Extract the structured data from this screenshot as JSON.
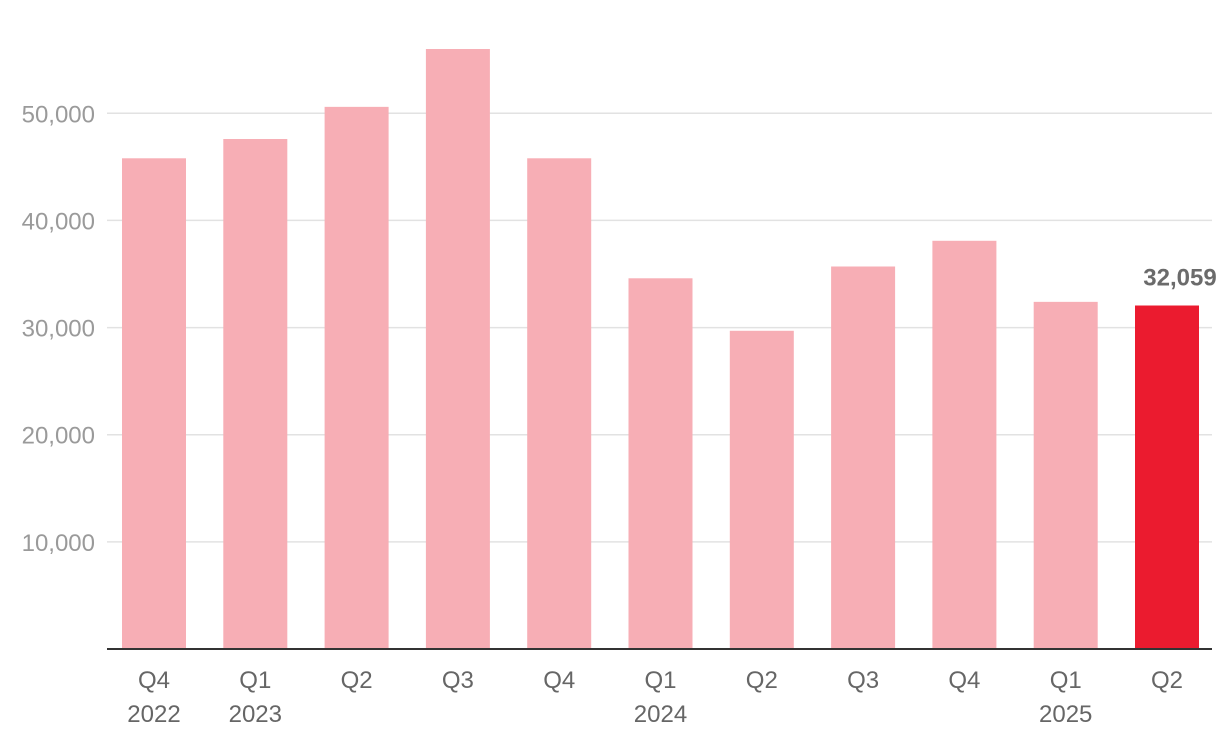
{
  "chart_data": {
    "type": "bar",
    "title": "",
    "xlabel": "",
    "ylabel": "",
    "categories": [
      {
        "quarter": "Q4",
        "year": "2022"
      },
      {
        "quarter": "Q1",
        "year": "2023"
      },
      {
        "quarter": "Q2",
        "year": ""
      },
      {
        "quarter": "Q3",
        "year": ""
      },
      {
        "quarter": "Q4",
        "year": ""
      },
      {
        "quarter": "Q1",
        "year": "2024"
      },
      {
        "quarter": "Q2",
        "year": ""
      },
      {
        "quarter": "Q3",
        "year": ""
      },
      {
        "quarter": "Q4",
        "year": ""
      },
      {
        "quarter": "Q1",
        "year": "2025"
      },
      {
        "quarter": "Q2",
        "year": ""
      }
    ],
    "values": [
      45800,
      47600,
      50600,
      56000,
      45800,
      34600,
      29700,
      35700,
      38100,
      32400,
      32059
    ],
    "ylim": [
      0,
      56000
    ],
    "yticks": [
      10000,
      20000,
      30000,
      40000,
      50000
    ],
    "ytick_labels": [
      "10,000",
      "20,000",
      "30,000",
      "40,000",
      "50,000"
    ],
    "grid": true,
    "highlight_index": 10,
    "value_labels": [
      {
        "index": 10,
        "text": "32,059"
      }
    ],
    "colors": {
      "bar": "#f7aeb5",
      "highlight": "#eb1b2f",
      "grid": "#e2e2e2",
      "axis": "#333333"
    }
  }
}
